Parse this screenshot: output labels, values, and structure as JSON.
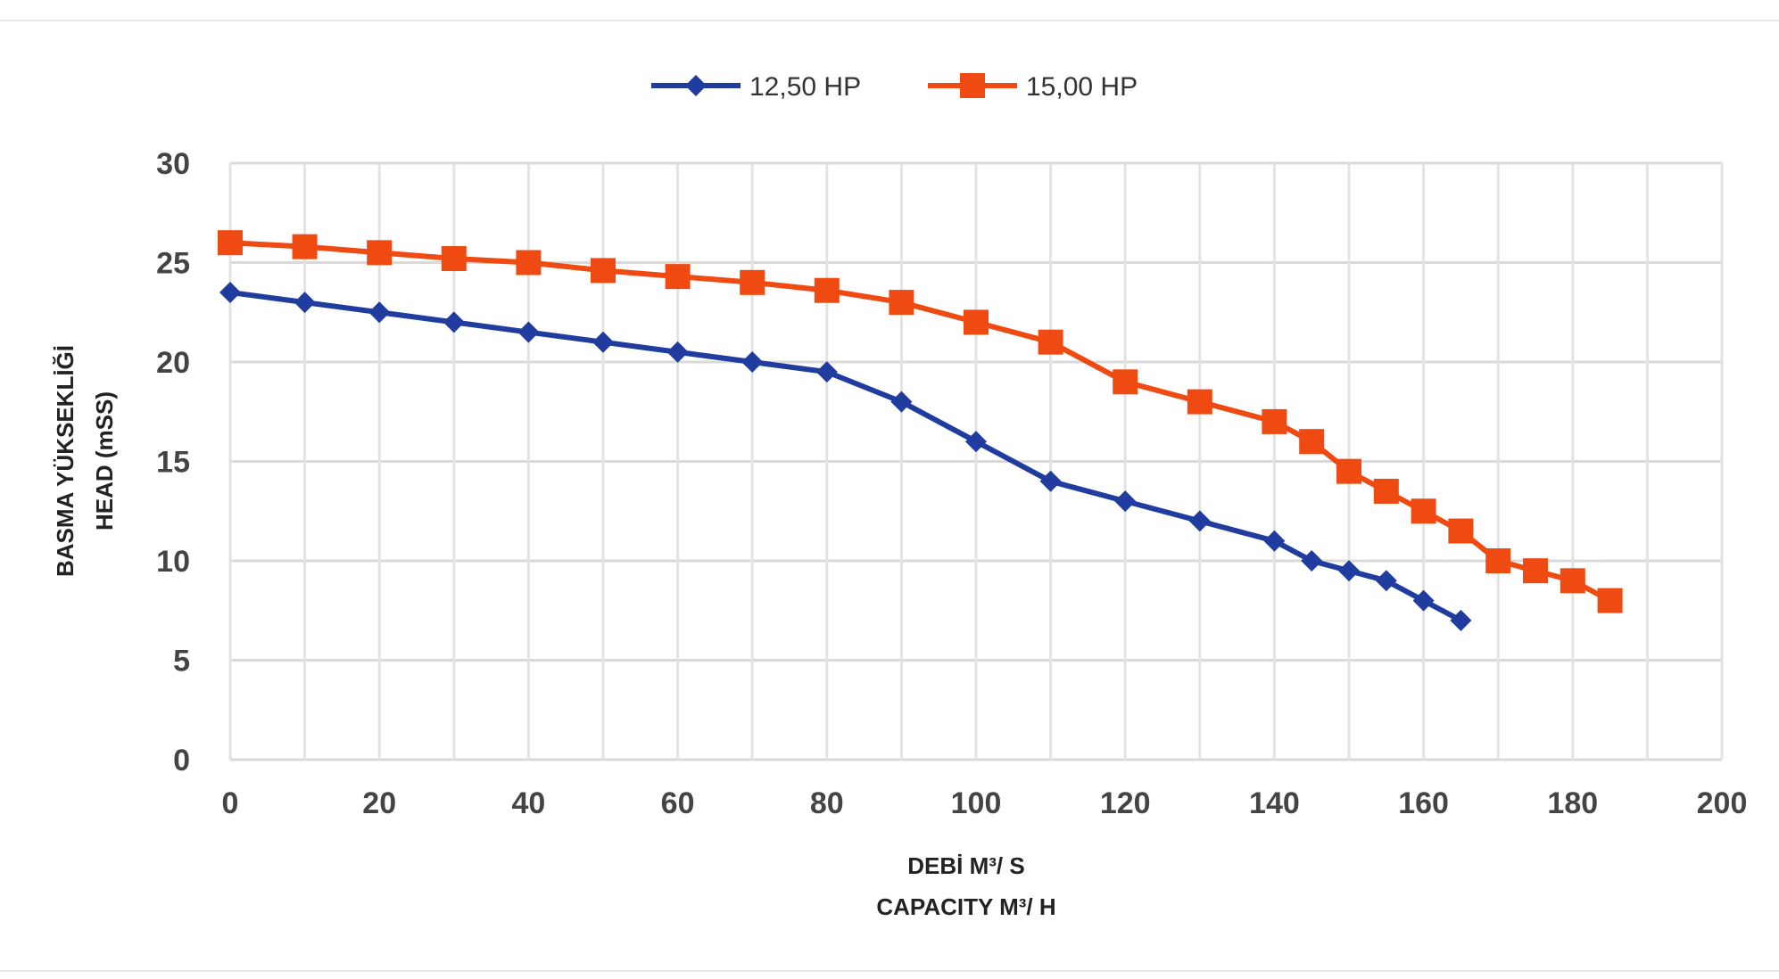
{
  "chart_data": {
    "type": "line",
    "xlabel": [
      "DEBİ M³/ S",
      "CAPACITY M³/ H"
    ],
    "ylabel": [
      "BASMA YÜKSEKLİĞİ",
      "HEAD (mSS)"
    ],
    "xlim": [
      0,
      200
    ],
    "ylim": [
      0,
      30
    ],
    "x_ticks": [
      0,
      20,
      40,
      60,
      80,
      100,
      120,
      140,
      160,
      180,
      200
    ],
    "y_ticks": [
      0,
      5,
      10,
      15,
      20,
      25,
      30
    ],
    "grid": true,
    "legend_position": "top-center",
    "series": [
      {
        "name": "12,50 HP",
        "color": "#1f3c9e",
        "marker": "diamond",
        "x": [
          0,
          10,
          20,
          30,
          40,
          50,
          60,
          70,
          80,
          90,
          100,
          110,
          120,
          130,
          140,
          145,
          150,
          155,
          160,
          165
        ],
        "y": [
          23.5,
          23,
          22.5,
          22,
          21.5,
          21,
          20.5,
          20,
          19.5,
          18,
          16,
          14,
          13,
          12,
          11,
          10,
          9.5,
          9,
          8,
          7
        ]
      },
      {
        "name": "15,00 HP",
        "color": "#ee4a12",
        "marker": "square",
        "x": [
          0,
          10,
          20,
          30,
          40,
          50,
          60,
          70,
          80,
          90,
          100,
          110,
          120,
          130,
          140,
          145,
          150,
          155,
          160,
          165,
          170,
          175,
          180,
          185
        ],
        "y": [
          26,
          25.8,
          25.5,
          25.2,
          25,
          24.6,
          24.3,
          24,
          23.6,
          23,
          22,
          21,
          19,
          18,
          17,
          16,
          14.5,
          13.5,
          12.5,
          11.5,
          10,
          9.5,
          9,
          8
        ]
      }
    ]
  }
}
